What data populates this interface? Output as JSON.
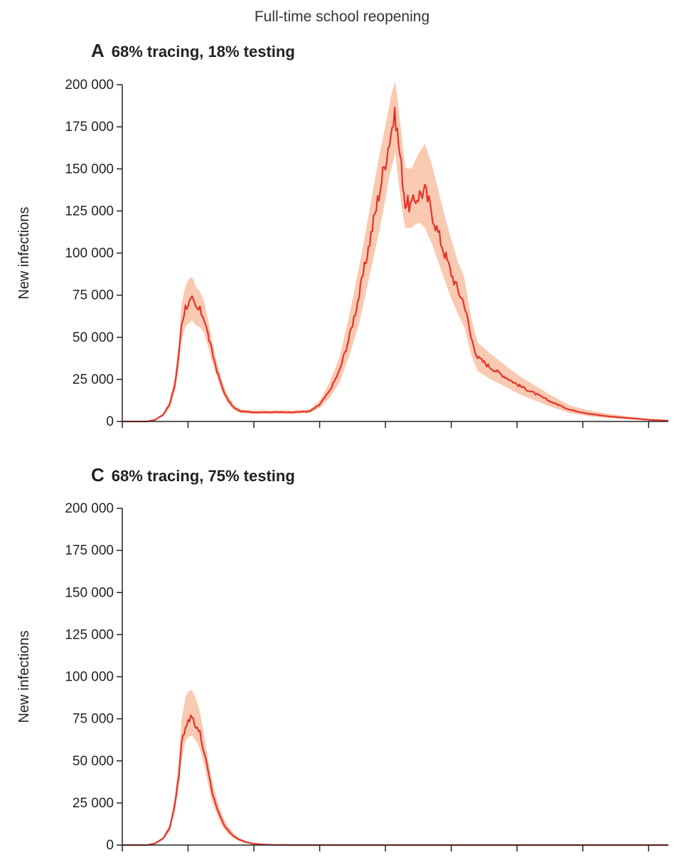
{
  "figure": {
    "title": "Full-time school reopening"
  },
  "colors": {
    "line": "#e3342b",
    "band": "#f9c3a9",
    "axis": "#222222"
  },
  "chart_data": [
    {
      "type": "area",
      "panel_letter": "A",
      "title": "68% tracing, 18% testing",
      "ylabel": "New infections",
      "xlabel": "",
      "ylim": [
        0,
        200000
      ],
      "yticks": [
        0,
        25000,
        50000,
        75000,
        100000,
        125000,
        150000,
        175000,
        200000
      ],
      "ytick_labels": [
        "0",
        "25 000",
        "50 000",
        "75 000",
        "100 000",
        "125 000",
        "150 000",
        "175 000",
        "200 000"
      ],
      "xlim": [
        0,
        830
      ],
      "xticks": [
        0,
        100,
        200,
        300,
        400,
        500,
        600,
        700,
        800
      ],
      "grid": false,
      "series": [
        {
          "x": [
            0,
            38,
            50,
            62,
            72,
            80,
            86,
            90,
            96,
            100,
            106,
            112,
            118,
            124,
            130,
            136,
            144,
            152,
            160,
            170,
            180,
            200,
            230,
            260,
            285,
            300,
            315,
            330,
            345,
            360,
            370,
            380,
            390,
            400,
            405,
            410,
            415,
            420,
            425,
            430,
            440,
            445,
            452,
            460,
            470,
            480,
            490,
            500,
            510,
            520,
            530,
            540,
            560,
            580,
            600,
            620,
            650,
            680,
            710,
            740,
            770,
            800,
            830
          ],
          "y": [
            0,
            0,
            1000,
            4000,
            10000,
            22000,
            40000,
            58000,
            68000,
            70000,
            72000,
            67000,
            66000,
            62000,
            52000,
            42000,
            30000,
            20000,
            13000,
            8000,
            6000,
            5500,
            5500,
            5500,
            6000,
            10000,
            18000,
            30000,
            50000,
            75000,
            95000,
            115000,
            135000,
            155000,
            165000,
            175000,
            182000,
            165000,
            148000,
            130000,
            128000,
            132000,
            135000,
            137000,
            125000,
            112000,
            100000,
            88000,
            78000,
            70000,
            50000,
            38000,
            32000,
            27000,
            22000,
            18000,
            12000,
            7000,
            4500,
            3000,
            2000,
            1000,
            500
          ],
          "lower": [
            0,
            0,
            800,
            3200,
            8000,
            18000,
            33000,
            48000,
            56000,
            58000,
            60000,
            57000,
            56000,
            53000,
            45000,
            36000,
            26000,
            17000,
            11000,
            6500,
            4800,
            4500,
            4500,
            4600,
            5000,
            8000,
            14000,
            23000,
            39000,
            58000,
            76000,
            94000,
            112000,
            132000,
            144000,
            152000,
            160000,
            142000,
            126000,
            115000,
            115000,
            117000,
            118000,
            115000,
            106000,
            95000,
            84000,
            73000,
            64000,
            56000,
            40000,
            30000,
            25000,
            21000,
            17000,
            13500,
            9000,
            5000,
            3000,
            2000,
            1200,
            600,
            250
          ],
          "upper": [
            0,
            0,
            1200,
            5000,
            12500,
            27000,
            48000,
            70000,
            80000,
            84000,
            86000,
            80000,
            77000,
            72000,
            61000,
            49000,
            35000,
            24000,
            15500,
            9600,
            7200,
            6600,
            6600,
            6600,
            7200,
            12500,
            23000,
            38000,
            63000,
            92000,
            113000,
            135000,
            157000,
            176000,
            186000,
            196000,
            202000,
            186000,
            168000,
            151000,
            150000,
            155000,
            160000,
            165000,
            153000,
            138000,
            122000,
            108000,
            95000,
            85000,
            62000,
            47000,
            40000,
            34000,
            28000,
            23000,
            16000,
            9500,
            6500,
            4500,
            3000,
            1600,
            800
          ]
        }
      ]
    },
    {
      "type": "area",
      "panel_letter": "C",
      "title": "68% tracing, 75% testing",
      "ylabel": "New infections",
      "xlabel": "",
      "ylim": [
        0,
        200000
      ],
      "yticks": [
        0,
        25000,
        50000,
        75000,
        100000,
        125000,
        150000,
        175000,
        200000
      ],
      "ytick_labels": [
        "0",
        "25 000",
        "50 000",
        "75 000",
        "100 000",
        "125 000",
        "150 000",
        "175 000",
        "200 000"
      ],
      "xlim": [
        0,
        830
      ],
      "xticks": [
        0,
        100,
        200,
        300,
        400,
        500,
        600,
        700,
        800
      ],
      "grid": false,
      "series": [
        {
          "x": [
            0,
            38,
            50,
            62,
            72,
            80,
            86,
            90,
            96,
            100,
            106,
            112,
            118,
            124,
            130,
            136,
            144,
            152,
            160,
            170,
            180,
            190,
            200,
            215,
            230,
            260,
            300,
            400,
            500,
            600,
            700,
            830
          ],
          "y": [
            0,
            0,
            1000,
            4000,
            10000,
            24000,
            42000,
            60000,
            72000,
            74000,
            76000,
            72000,
            66000,
            56000,
            44000,
            32000,
            22000,
            14000,
            9000,
            5000,
            2800,
            1500,
            800,
            300,
            100,
            0,
            0,
            0,
            0,
            0,
            0,
            0
          ],
          "lower": [
            0,
            0,
            800,
            3200,
            8000,
            20000,
            35000,
            50000,
            62000,
            64000,
            65000,
            62000,
            57000,
            48000,
            37000,
            26000,
            18000,
            11000,
            7000,
            3800,
            2000,
            1000,
            500,
            150,
            50,
            0,
            0,
            0,
            0,
            0,
            0,
            0
          ],
          "upper": [
            0,
            0,
            1200,
            5000,
            12500,
            29000,
            51000,
            74000,
            88000,
            91000,
            92000,
            87000,
            79000,
            66000,
            52000,
            39000,
            27000,
            17500,
            11500,
            6500,
            3800,
            2200,
            1200,
            550,
            250,
            0,
            0,
            0,
            0,
            0,
            0,
            0
          ]
        }
      ]
    }
  ]
}
